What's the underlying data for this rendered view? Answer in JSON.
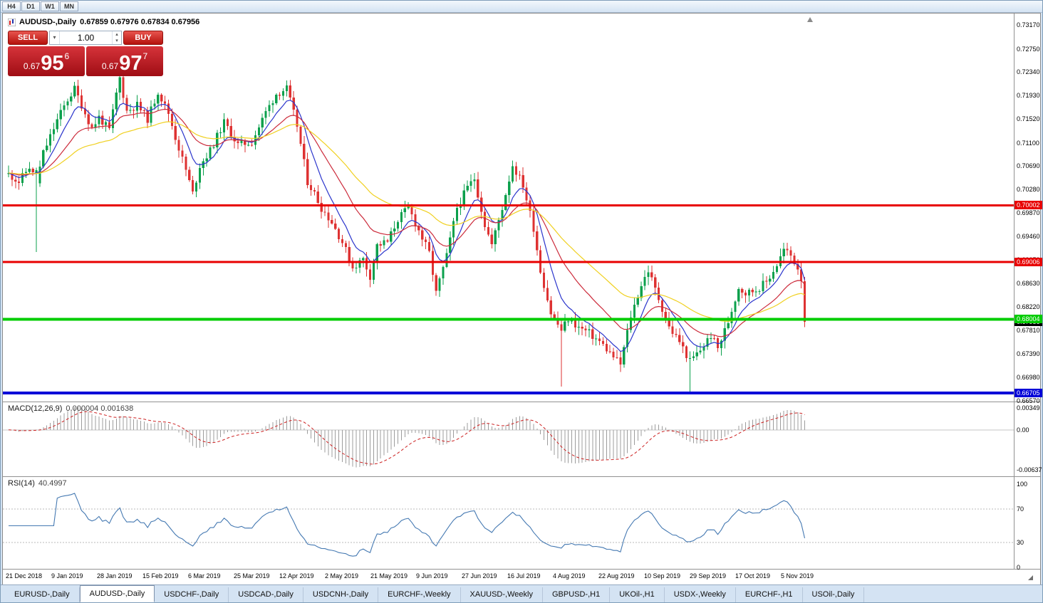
{
  "toolbar": {
    "timeframes": [
      "H4",
      "D1",
      "W1",
      "MN"
    ]
  },
  "chart_header": {
    "symbol": "AUDUSD-,Daily",
    "ohlc": "0.67859 0.67976 0.67834 0.67956"
  },
  "trade_panel": {
    "sell_label": "SELL",
    "buy_label": "BUY",
    "volume": "1.00",
    "bid": {
      "prefix": "0.67",
      "big": "95",
      "sup": "6"
    },
    "ask": {
      "prefix": "0.67",
      "big": "97",
      "sup": "7"
    }
  },
  "tabs": {
    "items": [
      "EURUSD-,Daily",
      "AUDUSD-,Daily",
      "USDCHF-,Daily",
      "USDCAD-,Daily",
      "USDCNH-,Daily",
      "EURCHF-,Weekly",
      "XAUUSD-,Weekly",
      "GBPUSD-,H1",
      "UKOil-,H1",
      "USDX-,Weekly",
      "EURCHF-,H1",
      "USOil-,Daily"
    ],
    "active_index": 1
  },
  "chart_data": {
    "type": "candlestick",
    "symbol": "AUDUSD",
    "period": "Daily",
    "up_color": "#0ba04c",
    "down_color": "#de3232",
    "price_axis": {
      "min": 0.6657,
      "max": 0.7317,
      "ticks": [
        "0.73170",
        "0.72750",
        "0.72340",
        "0.71930",
        "0.71520",
        "0.71100",
        "0.70690",
        "0.70280",
        "0.69870",
        "0.69460",
        "0.69050",
        "0.68630",
        "0.68220",
        "0.67810",
        "0.67390",
        "0.66980",
        "0.66570"
      ]
    },
    "hlines": [
      {
        "value": 0.70002,
        "label": "0.70002",
        "color": "#e80000",
        "width": 3
      },
      {
        "value": 0.69006,
        "label": "0.69006",
        "color": "#e80000",
        "width": 3
      },
      {
        "value": 0.68004,
        "label": "0.68004",
        "color": "#00cc00",
        "width": 4
      },
      {
        "value": 0.66705,
        "label": "0.66705",
        "color": "#0000d8",
        "width": 4
      }
    ],
    "current_price": {
      "value": 0.67956,
      "label": "0.67956",
      "color": "#000000"
    },
    "x_labels": [
      "21 Dec 2018",
      "9 Jan 2019",
      "28 Jan 2019",
      "15 Feb 2019",
      "6 Mar 2019",
      "25 Mar 2019",
      "12 Apr 2019",
      "2 May 2019",
      "21 May 2019",
      "9 Jun 2019",
      "27 Jun 2019",
      "16 Jul 2019",
      "4 Aug 2019",
      "22 Aug 2019",
      "10 Sep 2019",
      "29 Sep 2019",
      "17 Oct 2019",
      "5 Nov 2019"
    ],
    "candles_count": 230,
    "price_path": [
      [
        0,
        0.7055
      ],
      [
        3,
        0.7042
      ],
      [
        6,
        0.7068
      ],
      [
        8,
        0.704
      ],
      [
        10,
        0.7092
      ],
      [
        14,
        0.715
      ],
      [
        17,
        0.7186
      ],
      [
        19,
        0.7205
      ],
      [
        22,
        0.7162
      ],
      [
        24,
        0.7136
      ],
      [
        26,
        0.7155
      ],
      [
        29,
        0.7132
      ],
      [
        31,
        0.7196
      ],
      [
        32,
        0.7224
      ],
      [
        34,
        0.7166
      ],
      [
        37,
        0.7176
      ],
      [
        40,
        0.7152
      ],
      [
        43,
        0.72
      ],
      [
        46,
        0.7162
      ],
      [
        48,
        0.712
      ],
      [
        51,
        0.7062
      ],
      [
        53,
        0.7021
      ],
      [
        55,
        0.707
      ],
      [
        58,
        0.7096
      ],
      [
        62,
        0.7146
      ],
      [
        66,
        0.7106
      ],
      [
        70,
        0.7112
      ],
      [
        74,
        0.7164
      ],
      [
        77,
        0.7196
      ],
      [
        80,
        0.7205
      ],
      [
        83,
        0.714
      ],
      [
        86,
        0.7042
      ],
      [
        88,
        0.7021
      ],
      [
        90,
        0.6996
      ],
      [
        93,
        0.6971
      ],
      [
        96,
        0.6936
      ],
      [
        99,
        0.6891
      ],
      [
        102,
        0.6906
      ],
      [
        104,
        0.6876
      ],
      [
        106,
        0.693
      ],
      [
        109,
        0.6936
      ],
      [
        112,
        0.6976
      ],
      [
        115,
        0.6996
      ],
      [
        118,
        0.6956
      ],
      [
        121,
        0.6916
      ],
      [
        123,
        0.6846
      ],
      [
        126,
        0.6911
      ],
      [
        129,
        0.6996
      ],
      [
        132,
        0.7031
      ],
      [
        134,
        0.7048
      ],
      [
        137,
        0.6966
      ],
      [
        139,
        0.6931
      ],
      [
        142,
        0.6996
      ],
      [
        145,
        0.7071
      ],
      [
        148,
        0.7036
      ],
      [
        151,
        0.6961
      ],
      [
        153,
        0.6886
      ],
      [
        156,
        0.6811
      ],
      [
        159,
        0.6781
      ],
      [
        161,
        0.6801
      ],
      [
        164,
        0.6786
      ],
      [
        167,
        0.6776
      ],
      [
        170,
        0.6761
      ],
      [
        173,
        0.6741
      ],
      [
        176,
        0.6721
      ],
      [
        179,
        0.6806
      ],
      [
        182,
        0.6861
      ],
      [
        184,
        0.6886
      ],
      [
        187,
        0.6836
      ],
      [
        190,
        0.6786
      ],
      [
        193,
        0.6761
      ],
      [
        196,
        0.6726
      ],
      [
        199,
        0.6746
      ],
      [
        202,
        0.6772
      ],
      [
        204,
        0.6749
      ],
      [
        207,
        0.6796
      ],
      [
        210,
        0.6856
      ],
      [
        212,
        0.6846
      ],
      [
        215,
        0.6852
      ],
      [
        218,
        0.6866
      ],
      [
        221,
        0.6896
      ],
      [
        223,
        0.6922
      ],
      [
        225,
        0.6912
      ],
      [
        227,
        0.6891
      ],
      [
        228,
        0.6872
      ],
      [
        229,
        0.6796
      ]
    ],
    "spikes": [
      {
        "i": 8,
        "low": 0.6918,
        "close": 0.7062
      },
      {
        "i": 159,
        "low": 0.6682
      },
      {
        "i": 176,
        "low": 0.6708
      },
      {
        "i": 196,
        "low": 0.6672
      }
    ],
    "moving_averages": [
      {
        "name": "fast",
        "period": 8,
        "color": "#2b35cc"
      },
      {
        "name": "medium",
        "period": 21,
        "color": "#cc2b3b"
      },
      {
        "name": "slow",
        "period": 45,
        "color": "#f0d020"
      }
    ],
    "macd": {
      "label": "MACD(12,26,9)",
      "values": "0.000004 0.001638",
      "fast": 12,
      "slow": 26,
      "signal": 9,
      "ymax": 0.00349,
      "ymin": -0.00637,
      "axis": [
        "0.00349",
        "0.00",
        "-0.00637"
      ],
      "signal_color": "#cc2020",
      "hist_color": "#9c9c9c"
    },
    "rsi": {
      "label": "RSI(14)",
      "value": "40.4997",
      "period": 14,
      "levels": [
        70,
        30
      ],
      "axis": [
        "100",
        "70",
        "30",
        "0"
      ],
      "color": "#4579b2"
    }
  }
}
